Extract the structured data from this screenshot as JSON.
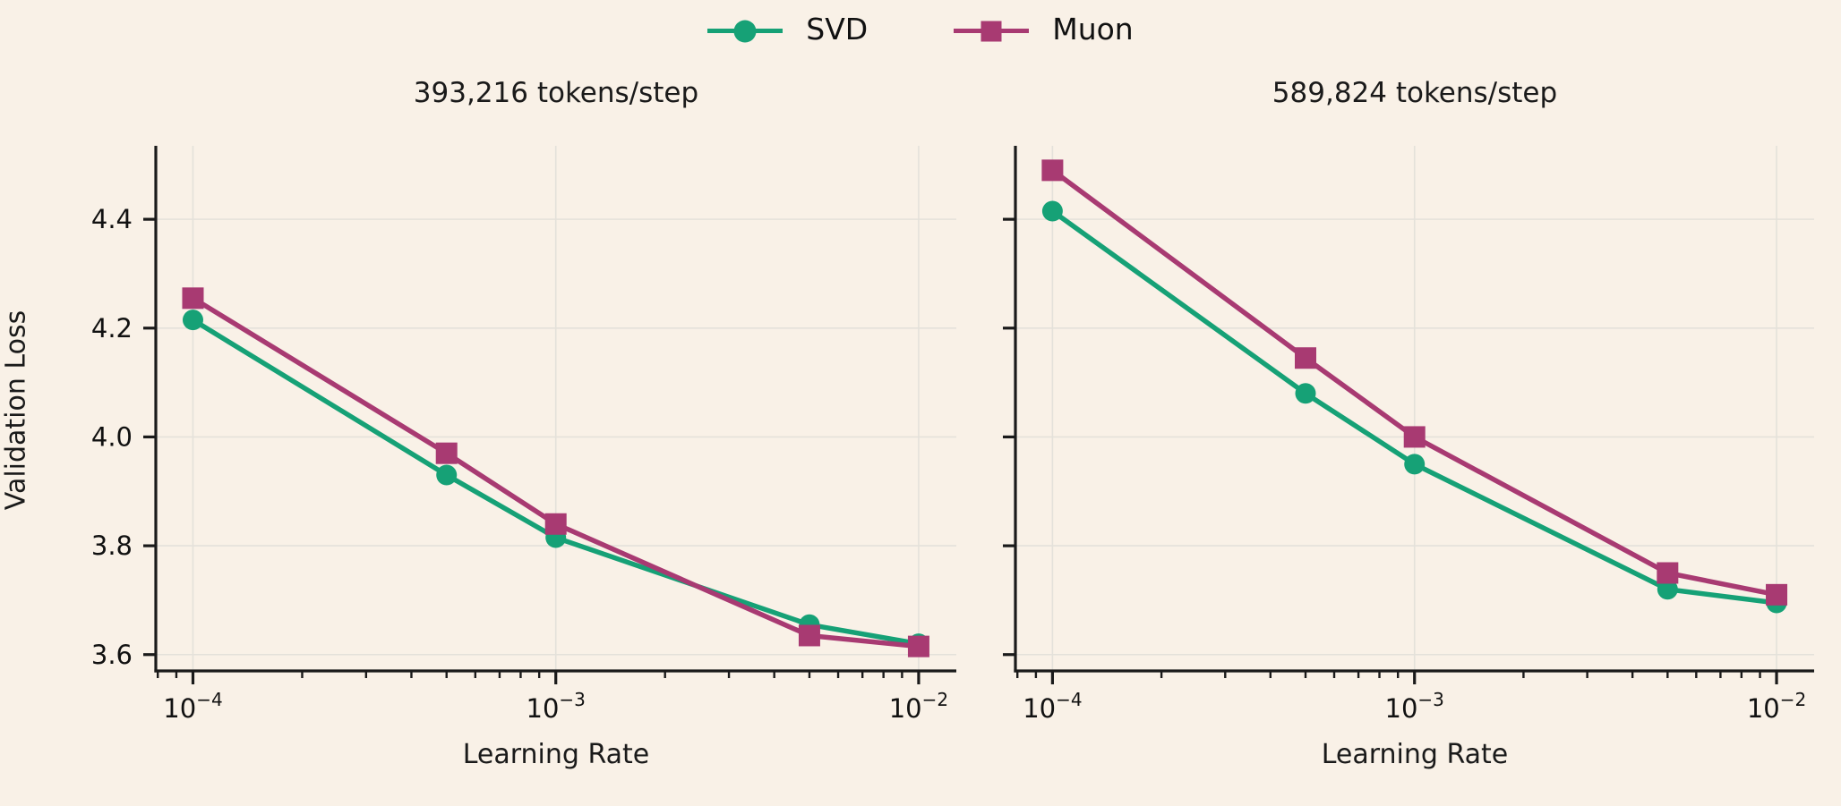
{
  "figure": {
    "background": "#f9f1e7",
    "grid_color": "#e4e1da",
    "spine_color": "#1a1a1a",
    "text_color": "#111111"
  },
  "legend": [
    {
      "label": "SVD",
      "color": "#16a176",
      "marker": "circle"
    },
    {
      "label": "Muon",
      "color": "#a83a72",
      "marker": "square"
    }
  ],
  "chart_data": [
    {
      "type": "line",
      "title": "393,216 tokens/step",
      "xlabel": "Learning Rate",
      "ylabel": "Validation Loss",
      "xscale": "log",
      "x": [
        0.0001,
        0.0005,
        0.001,
        0.005,
        0.01
      ],
      "series": [
        {
          "name": "SVD",
          "color": "#16a176",
          "marker": "circle",
          "values": [
            4.215,
            3.93,
            3.815,
            3.655,
            3.62
          ]
        },
        {
          "name": "Muon",
          "color": "#a83a72",
          "marker": "square",
          "values": [
            4.255,
            3.97,
            3.84,
            3.635,
            3.615
          ]
        }
      ],
      "xlim": [
        7.9e-05,
        0.0127
      ],
      "ylim": [
        3.57,
        4.535
      ],
      "yticks": [
        3.6,
        3.8,
        4.0,
        4.2,
        4.4
      ],
      "ytick_labels": [
        "3.6",
        "3.8",
        "4.0",
        "4.2",
        "4.4"
      ],
      "show_ytick_labels": true,
      "xticks": [
        0.0001,
        0.001,
        0.01
      ],
      "xtick_labels": [
        {
          "base": "10",
          "exp": "−4"
        },
        {
          "base": "10",
          "exp": "−3"
        },
        {
          "base": "10",
          "exp": "−2"
        }
      ],
      "grid": true,
      "legend_position": "upper center (figure)"
    },
    {
      "type": "line",
      "title": "589,824 tokens/step",
      "xlabel": "Learning Rate",
      "ylabel": "",
      "xscale": "log",
      "x": [
        0.0001,
        0.0005,
        0.001,
        0.005,
        0.01
      ],
      "series": [
        {
          "name": "SVD",
          "color": "#16a176",
          "marker": "circle",
          "values": [
            4.415,
            4.08,
            3.95,
            3.72,
            3.695
          ]
        },
        {
          "name": "Muon",
          "color": "#a83a72",
          "marker": "square",
          "values": [
            4.49,
            4.145,
            4.0,
            3.75,
            3.71
          ]
        }
      ],
      "xlim": [
        7.9e-05,
        0.0127
      ],
      "ylim": [
        3.57,
        4.535
      ],
      "yticks": [
        3.6,
        3.8,
        4.0,
        4.2,
        4.4
      ],
      "ytick_labels": [
        "3.6",
        "3.8",
        "4.0",
        "4.2",
        "4.4"
      ],
      "show_ytick_labels": false,
      "xticks": [
        0.0001,
        0.001,
        0.01
      ],
      "xtick_labels": [
        {
          "base": "10",
          "exp": "−4"
        },
        {
          "base": "10",
          "exp": "−3"
        },
        {
          "base": "10",
          "exp": "−2"
        }
      ],
      "grid": true
    }
  ]
}
